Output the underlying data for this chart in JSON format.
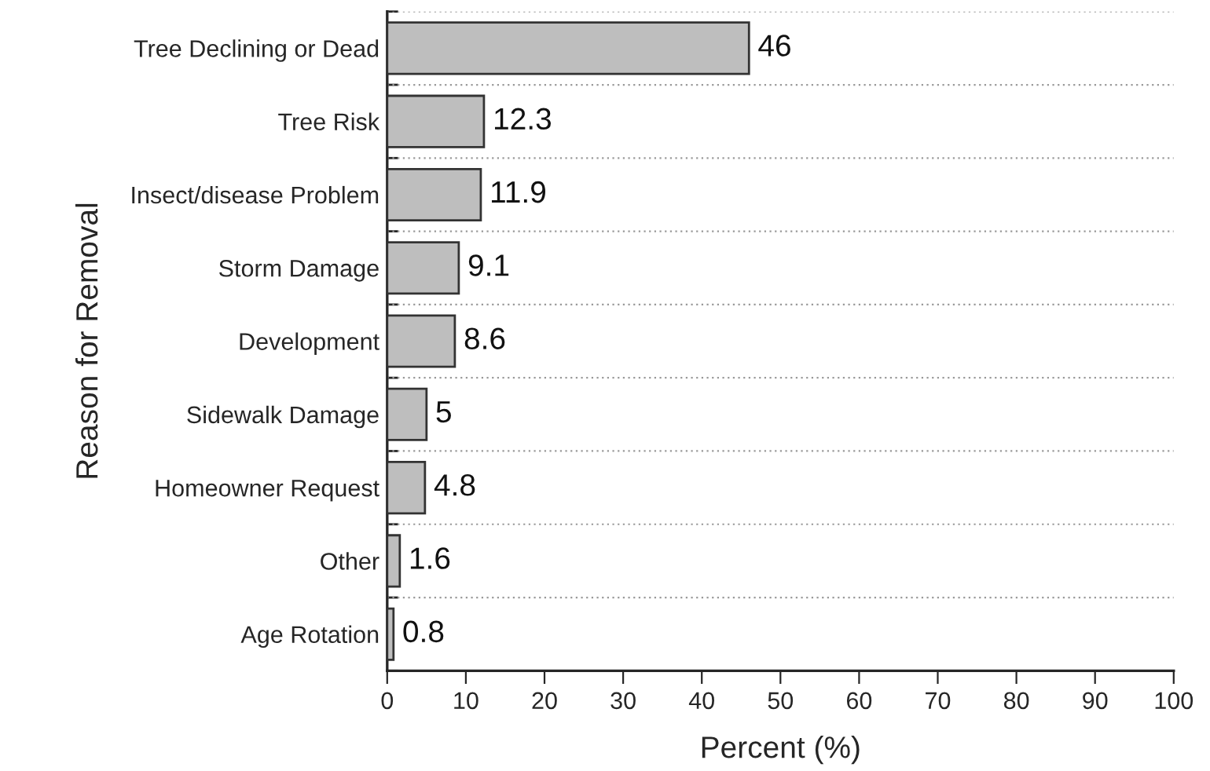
{
  "chart_data": {
    "type": "bar",
    "orientation": "horizontal",
    "xlabel": "Percent (%)",
    "ylabel": "Reason for Removal",
    "categories": [
      "Tree Declining or Dead",
      "Tree Risk",
      "Insect/disease Problem",
      "Storm Damage",
      "Development",
      "Sidewalk Damage",
      "Homeowner Request",
      "Other",
      "Age Rotation"
    ],
    "values": [
      46,
      12.3,
      11.9,
      9.1,
      8.6,
      5,
      4.8,
      1.6,
      0.8
    ],
    "color": "#bebebe",
    "xlim": [
      0,
      100
    ],
    "xticks": [
      0,
      10,
      20,
      30,
      40,
      50,
      60,
      70,
      80,
      90,
      100
    ],
    "grid": "y",
    "data_labels": true
  }
}
